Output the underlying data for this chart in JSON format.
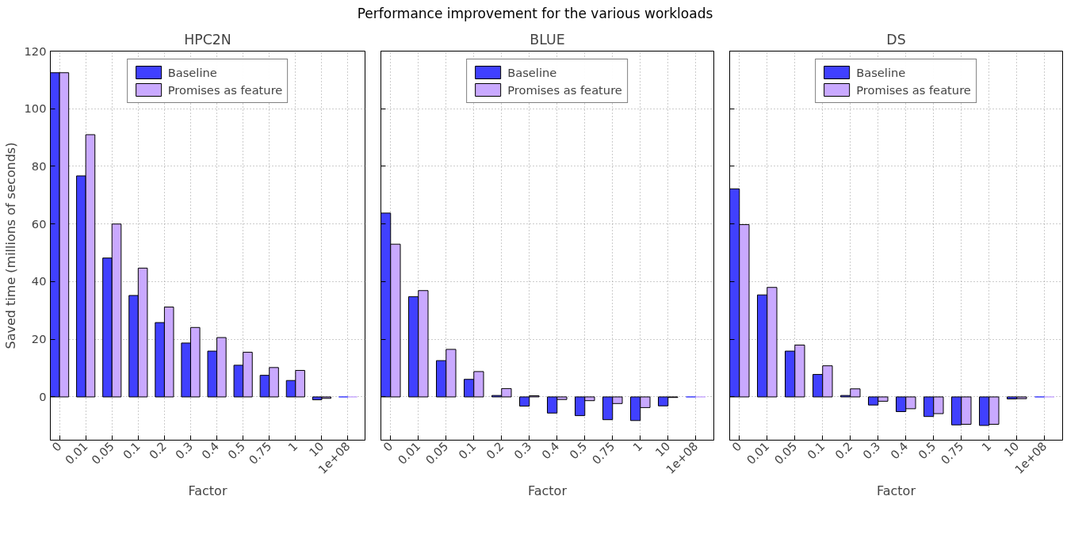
{
  "chart_data": [
    {
      "type": "bar",
      "title": "HPC2N",
      "annotations": [
        "Performance improvement for the various workloads"
      ],
      "xlabel": "Factor",
      "ylabel": "Saved time (millions of seconds)",
      "categories": [
        "0",
        "0.01",
        "0.05",
        "0.1",
        "0.2",
        "0.3",
        "0.4",
        "0.5",
        "0.75",
        "1",
        "10",
        "1e+08"
      ],
      "series": [
        {
          "name": "Baseline",
          "color": "#4040ff",
          "values": [
            112.5,
            76.7,
            48.2,
            35.2,
            25.8,
            18.7,
            15.9,
            11,
            7.5,
            5.7,
            -1,
            0
          ]
        },
        {
          "name": "Promises as feature",
          "color": "#c9a9ff",
          "values": [
            112.5,
            91,
            60,
            44.7,
            31.2,
            24.1,
            20.6,
            15.5,
            10.2,
            9.2,
            -0.5,
            0
          ]
        }
      ],
      "ylim": [
        -15,
        120
      ],
      "yticks": [
        0,
        20,
        40,
        60,
        80,
        100,
        120
      ],
      "grid": true,
      "legend": "top"
    },
    {
      "type": "bar",
      "title": "BLUE",
      "xlabel": "Factor",
      "categories": [
        "0",
        "0.01",
        "0.05",
        "0.1",
        "0.2",
        "0.3",
        "0.4",
        "0.5",
        "0.75",
        "1",
        "10",
        "1e+08"
      ],
      "series": [
        {
          "name": "Baseline",
          "color": "#4040ff",
          "values": [
            63.8,
            34.8,
            12.6,
            6.1,
            0.5,
            -3.2,
            -5.6,
            -6.5,
            -7.9,
            -8.2,
            -3.1,
            0
          ]
        },
        {
          "name": "Promises as feature",
          "color": "#c9a9ff",
          "values": [
            53,
            36.9,
            16.5,
            8.8,
            2.9,
            0.4,
            -0.9,
            -1.3,
            -2.3,
            -3.7,
            -0.2,
            0
          ]
        }
      ],
      "ylim": [
        -15,
        120
      ],
      "yticks": [
        0,
        20,
        40,
        60,
        80,
        100,
        120
      ],
      "grid": true,
      "legend": "top",
      "tick_labels": "x"
    },
    {
      "type": "bar",
      "title": "DS",
      "xlabel": "Factor",
      "categories": [
        "0",
        "0.01",
        "0.05",
        "0.1",
        "0.2",
        "0.3",
        "0.4",
        "0.5",
        "0.75",
        "1",
        "10",
        "1e+08"
      ],
      "series": [
        {
          "name": "Baseline",
          "color": "#4040ff",
          "values": [
            72.2,
            35.4,
            15.9,
            7.8,
            0.5,
            -2.8,
            -5.1,
            -6.8,
            -9.7,
            -9.9,
            -0.7,
            0
          ]
        },
        {
          "name": "Promises as feature",
          "color": "#c9a9ff",
          "values": [
            59.8,
            38,
            18,
            10.8,
            2.8,
            -1.5,
            -4.1,
            -5.8,
            -9.5,
            -9.5,
            -0.6,
            0
          ]
        }
      ],
      "ylim": [
        -15,
        120
      ],
      "yticks": [
        0,
        20,
        40,
        60,
        80,
        100,
        120
      ],
      "grid": true,
      "legend": "top",
      "tick_labels": "x"
    }
  ]
}
